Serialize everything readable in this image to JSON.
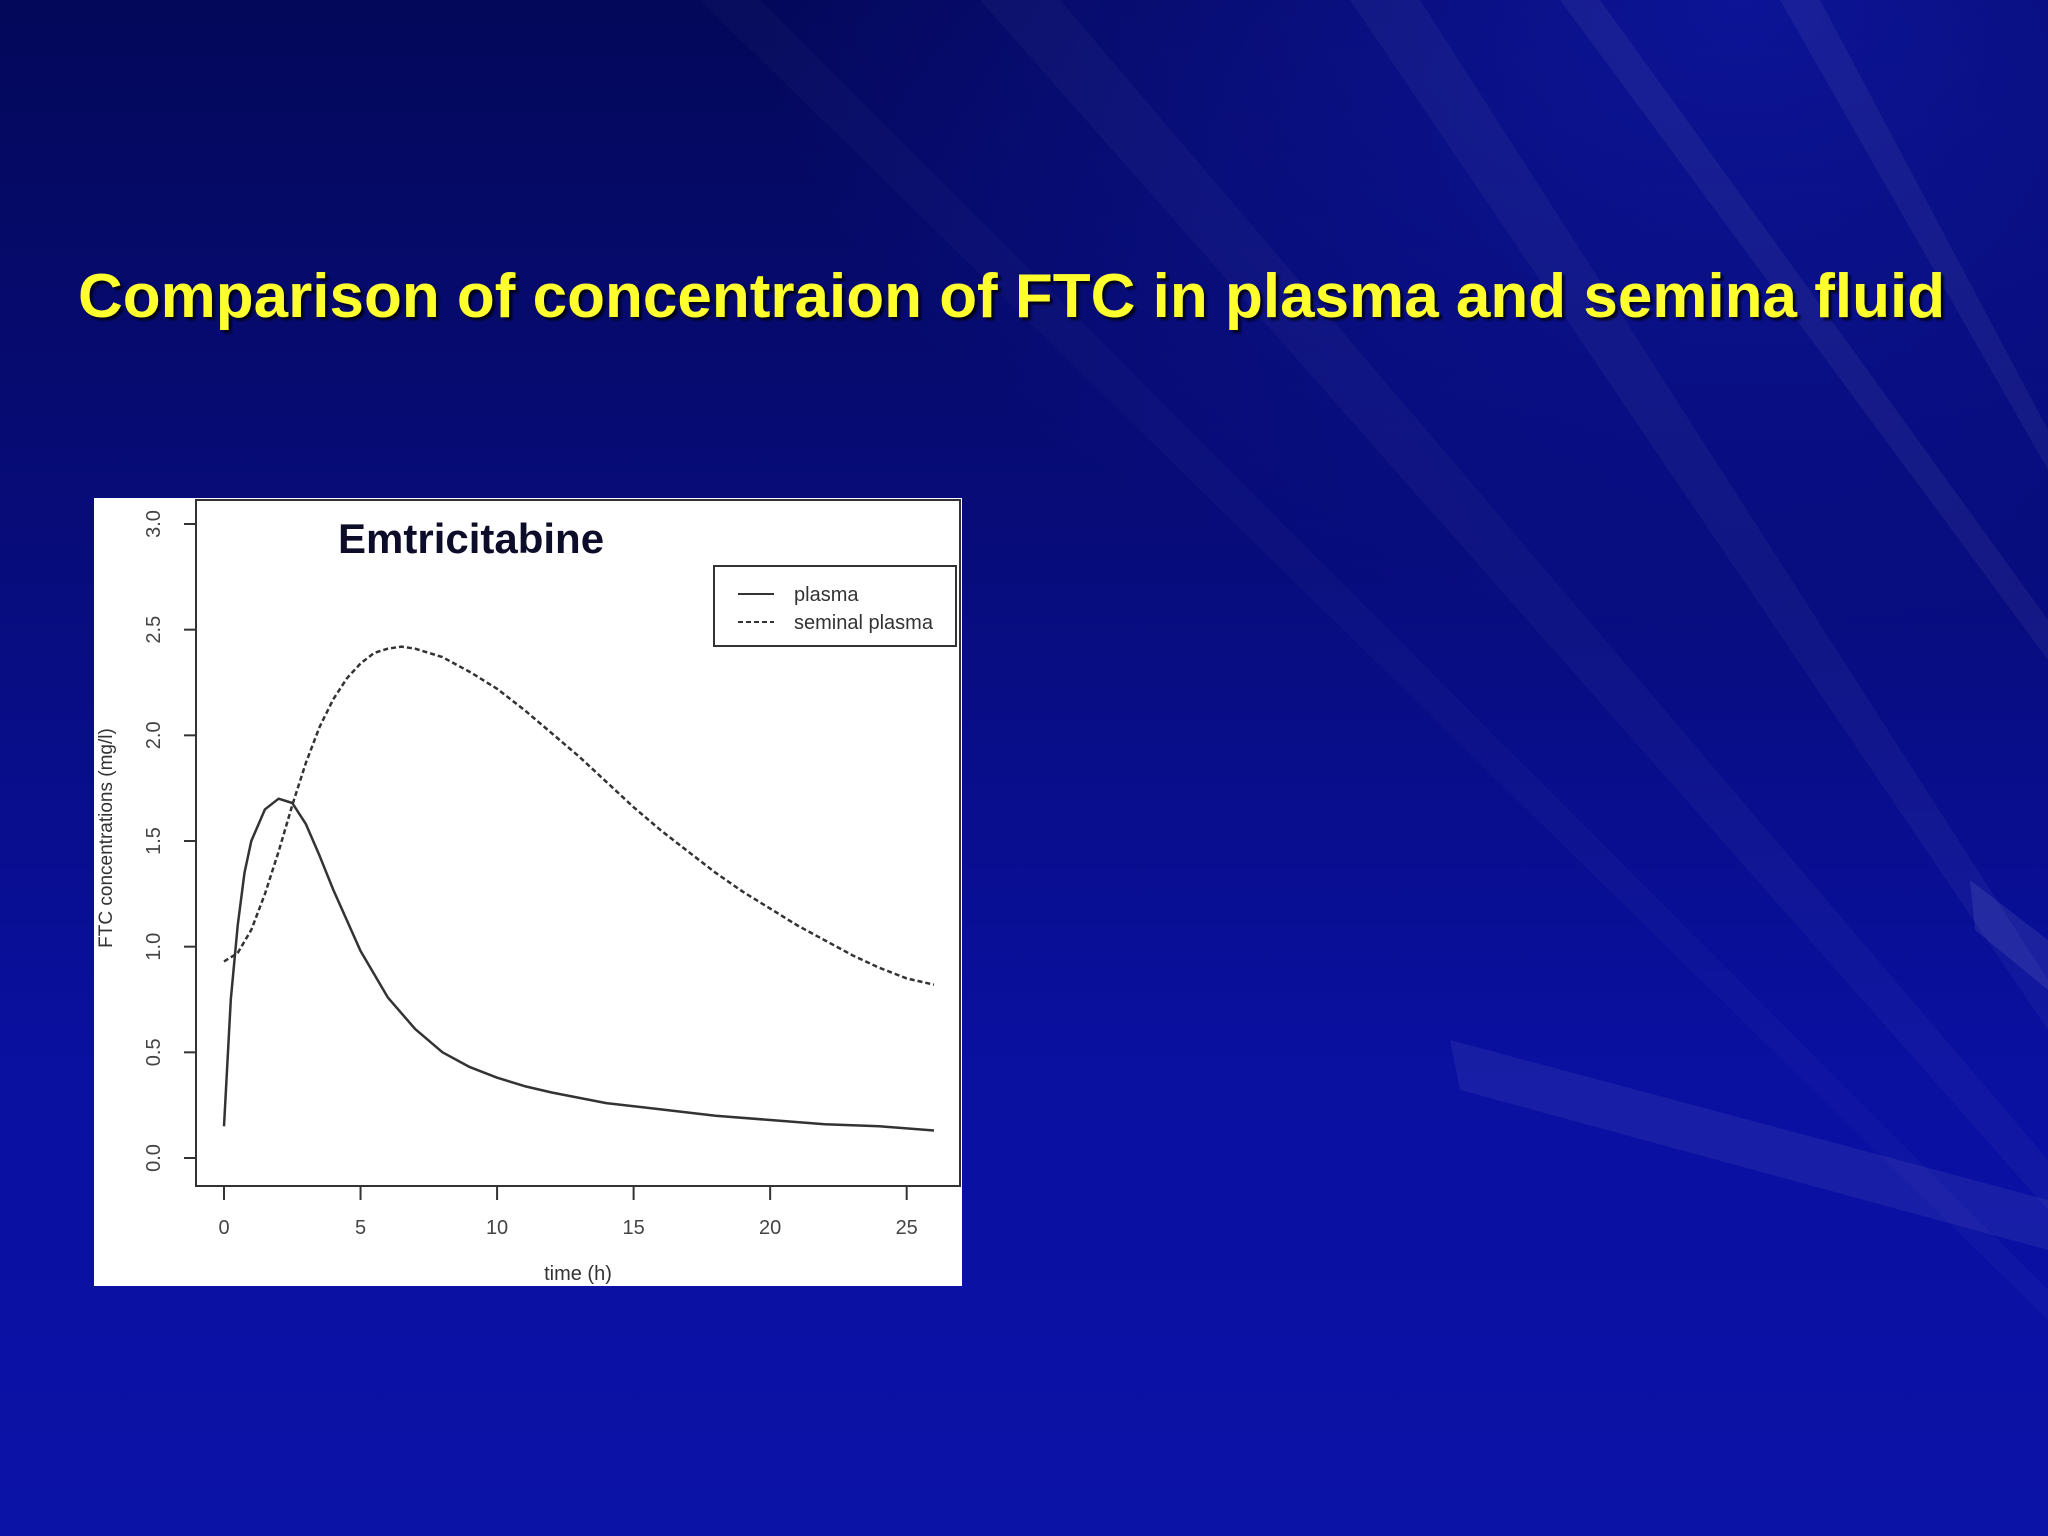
{
  "slide": {
    "title": "Comparison of concentraion of FTC in plasma and semina fluid",
    "background_color": "#0a0f8c",
    "title_color": "#ffff2e"
  },
  "chart_data": {
    "type": "line",
    "title": "",
    "annotation": "Emtricitabine",
    "xlabel": "time (h)",
    "ylabel": "FTC concentrations (mg/l)",
    "xlim": [
      0,
      26
    ],
    "ylim": [
      0,
      3
    ],
    "xticks": [
      0,
      5,
      10,
      15,
      20,
      25
    ],
    "xtick_labels": [
      "0",
      "5",
      "10",
      "15",
      "20",
      "25"
    ],
    "yticks": [
      0,
      0.5,
      1,
      1.5,
      2,
      2.5,
      3
    ],
    "ytick_labels": [
      "0.0",
      "0.5",
      "1.0",
      "1.5",
      "2.0",
      "2.5",
      "3.0"
    ],
    "grid": false,
    "legend_position": "top-right",
    "series": [
      {
        "name": "plasma",
        "line_style": "solid",
        "color": "#333333",
        "x": [
          0,
          0.25,
          0.5,
          0.75,
          1,
          1.5,
          2,
          2.5,
          3,
          3.5,
          4,
          5,
          6,
          7,
          8,
          9,
          10,
          11,
          12,
          14,
          16,
          18,
          20,
          22,
          24,
          26
        ],
        "y": [
          0.15,
          0.75,
          1.1,
          1.35,
          1.5,
          1.65,
          1.7,
          1.68,
          1.58,
          1.43,
          1.27,
          0.98,
          0.76,
          0.61,
          0.5,
          0.43,
          0.38,
          0.34,
          0.31,
          0.26,
          0.23,
          0.2,
          0.18,
          0.16,
          0.15,
          0.13
        ]
      },
      {
        "name": "seminal plasma",
        "line_style": "dashed",
        "color": "#333333",
        "x": [
          0,
          0.5,
          1,
          1.5,
          2,
          2.5,
          3,
          3.5,
          4,
          4.5,
          5,
          5.5,
          6,
          6.5,
          7,
          8,
          9,
          10,
          11,
          12,
          13,
          14,
          15,
          16,
          17,
          18,
          19,
          20,
          21,
          22,
          23,
          24,
          25,
          26
        ],
        "y": [
          0.93,
          0.97,
          1.08,
          1.25,
          1.45,
          1.67,
          1.87,
          2.04,
          2.17,
          2.27,
          2.34,
          2.39,
          2.41,
          2.42,
          2.41,
          2.37,
          2.3,
          2.22,
          2.12,
          2.01,
          1.9,
          1.78,
          1.66,
          1.55,
          1.45,
          1.35,
          1.26,
          1.18,
          1.1,
          1.03,
          0.96,
          0.9,
          0.85,
          0.82
        ]
      }
    ]
  }
}
